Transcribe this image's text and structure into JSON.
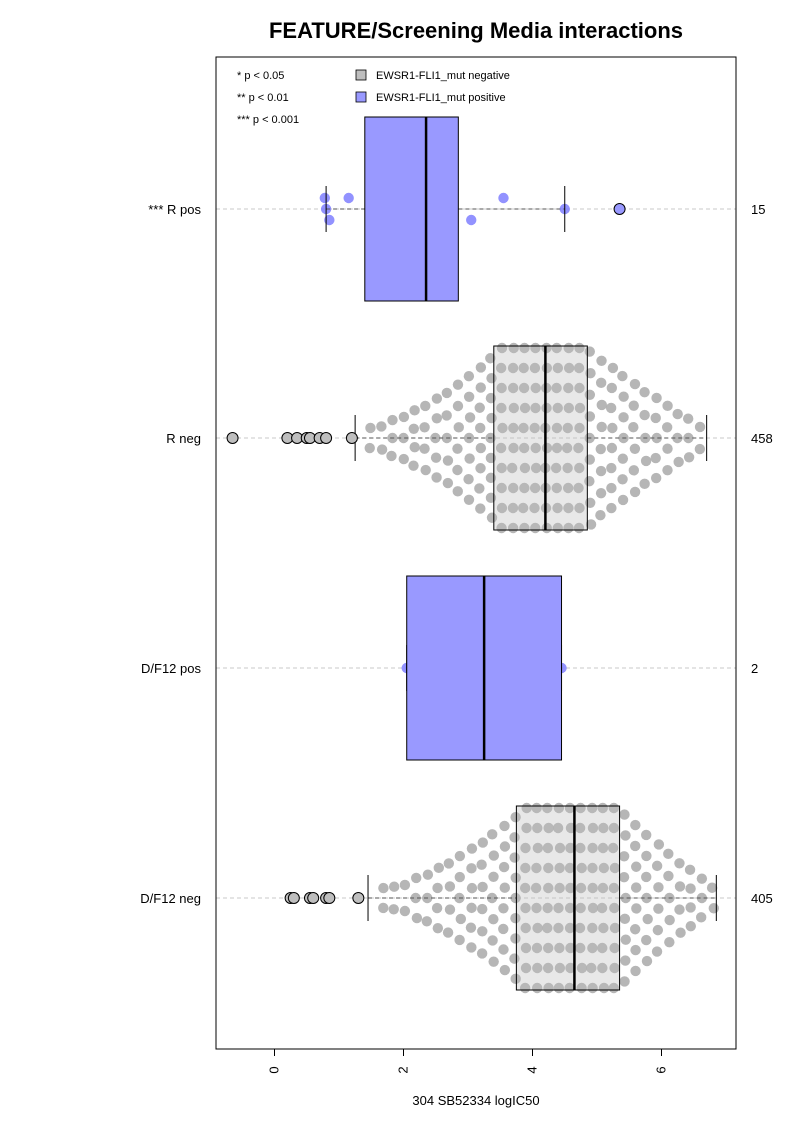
{
  "chart_data": {
    "type": "boxplot",
    "title": "FEATURE/Screening Media interactions",
    "xlabel": "304 SB52334 logIC50",
    "xlim": [
      -0.9,
      7.2
    ],
    "xticks": [
      "0",
      "2",
      "4",
      "6"
    ],
    "xtick_values": [
      0,
      2,
      4,
      6
    ],
    "grid": "dashed horizontal lines at each category",
    "legend_position": "top-left",
    "significance_legend": [
      "* p < 0.05",
      "** p < 0.01",
      "*** p < 0.001"
    ],
    "legend": [
      {
        "label": "EWSR1-FLI1_mut negative",
        "color": "#bebebe"
      },
      {
        "label": "EWSR1-FLI1_mut positive",
        "color": "#9999ff"
      }
    ],
    "colors": {
      "negative_box": "#bebebe",
      "positive_box": "#9999ff",
      "negative_point": "#a9a9a9",
      "positive_point": "#7f7fff"
    },
    "groups": [
      {
        "label": "*** R pos",
        "count": "15",
        "mutation": "positive",
        "whisker_low": 0.8,
        "q1": 1.4,
        "median": 2.35,
        "q3": 2.85,
        "whisker_high": 4.5,
        "outliers": [
          5.35
        ],
        "points": [
          0.78,
          0.8,
          0.85,
          1.15,
          1.6,
          2.0,
          2.05,
          2.3,
          2.4,
          2.6,
          2.65,
          3.05,
          3.55,
          4.5
        ]
      },
      {
        "label": "R neg",
        "count": "458",
        "mutation": "negative",
        "whisker_low": 1.25,
        "q1": 3.4,
        "median": 4.2,
        "q3": 4.85,
        "whisker_high": 6.7,
        "outliers": [
          -0.65,
          0.2,
          0.35,
          0.5,
          0.55,
          0.7,
          0.8,
          1.2
        ]
      },
      {
        "label": "D/F12 pos",
        "count": "2",
        "mutation": "positive",
        "whisker_low": 2.05,
        "q1": 2.05,
        "median": 3.25,
        "q3": 4.45,
        "whisker_high": 4.45,
        "outliers": [],
        "points": [
          2.05,
          4.45
        ]
      },
      {
        "label": "D/F12 neg",
        "count": "405",
        "mutation": "negative",
        "whisker_low": 1.45,
        "q1": 3.75,
        "median": 4.65,
        "q3": 5.35,
        "whisker_high": 6.85,
        "outliers": [
          0.25,
          0.3,
          0.55,
          0.6,
          0.8,
          0.85,
          1.3
        ]
      }
    ]
  }
}
